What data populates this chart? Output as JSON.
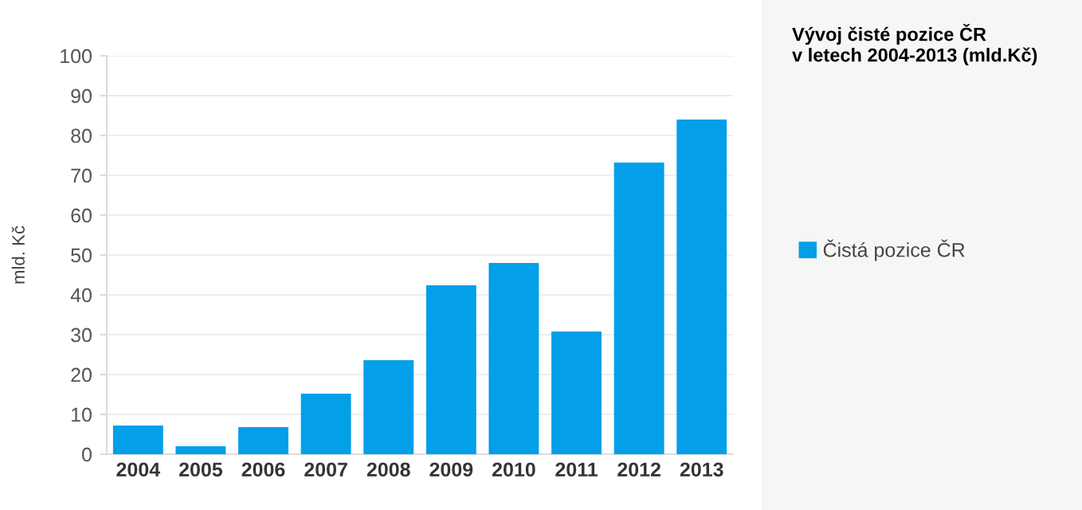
{
  "chart_data": {
    "type": "bar",
    "title": "Vývoj čisté pozice ČR\nv letech 2004-2013 (mld.Kč)",
    "ylabel": "mld. Kč",
    "categories": [
      "2004",
      "2005",
      "2006",
      "2007",
      "2008",
      "2009",
      "2010",
      "2011",
      "2012",
      "2013"
    ],
    "series": [
      {
        "name": "Čistá pozice ČR",
        "color": "#039fe8",
        "values": [
          7.2,
          2.0,
          6.8,
          15.2,
          23.6,
          42.4,
          48.0,
          30.8,
          73.2,
          84.0
        ]
      }
    ],
    "ylim": [
      0,
      100
    ],
    "yticks": [
      0,
      10,
      20,
      30,
      40,
      50,
      60,
      70,
      80,
      90,
      100
    ],
    "grid": "y",
    "legend": "right"
  }
}
